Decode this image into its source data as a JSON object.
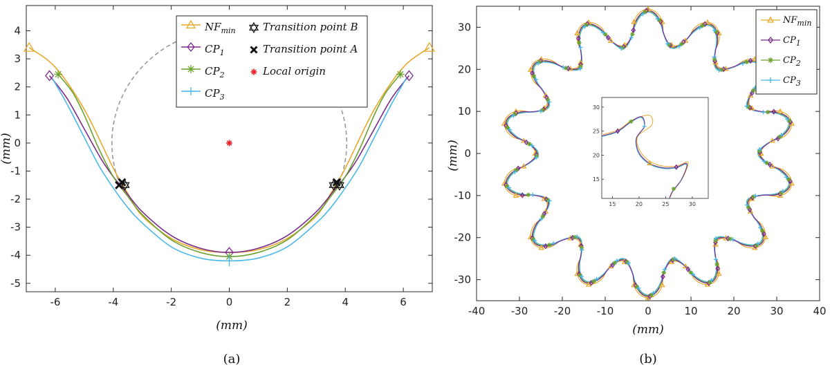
{
  "colors": {
    "nf": "#e7a92b",
    "cp1": "#7b2a8a",
    "cp2": "#6ba12e",
    "cp3": "#49b7e8",
    "origin": "#e8212b",
    "dash": "#999999"
  },
  "chart_data": [
    {
      "type": "line",
      "caption": "(a)",
      "xlabel": "(mm)",
      "ylabel": "(mm)",
      "xlim": [
        -7,
        7
      ],
      "ylim": [
        -5.3,
        4.9
      ],
      "xticks": [
        "-6",
        "-4",
        "-2",
        "0",
        "2",
        "4",
        "6"
      ],
      "yticks": [
        "4",
        "3",
        "2",
        "1",
        "0",
        "-1",
        "-2",
        "-3",
        "-4",
        "-5"
      ],
      "xtick_values": [
        -6,
        -4,
        -2,
        0,
        2,
        4,
        6
      ],
      "ytick_values": [
        4,
        3,
        2,
        1,
        0,
        -1,
        -2,
        -3,
        -4,
        -5
      ],
      "legend": {
        "placement": "top-right",
        "entries": [
          {
            "name": "NF",
            "sub": "min",
            "marker": "triangle"
          },
          {
            "name": "CP",
            "sub": "1",
            "marker": "diamond"
          },
          {
            "name": "CP",
            "sub": "2",
            "marker": "asterisk"
          },
          {
            "name": "CP",
            "sub": "3",
            "marker": "plus"
          },
          {
            "name": "Transition point B",
            "sub": "",
            "marker": "hexagram"
          },
          {
            "name": "Transition point A",
            "sub": "",
            "marker": "cross"
          },
          {
            "name": "Local origin",
            "sub": "",
            "marker": "star"
          }
        ]
      },
      "series": [
        {
          "name": "NF_min",
          "x": [
            -6.9,
            -6,
            -5,
            -4,
            -3.5,
            -3,
            -2,
            -1,
            0,
            1,
            2,
            3,
            3.5,
            4,
            5,
            6,
            6.9
          ],
          "y": [
            3.4,
            2.7,
            1.2,
            -0.9,
            -1.8,
            -2.6,
            -3.4,
            -3.8,
            -3.9,
            -3.8,
            -3.4,
            -2.6,
            -1.8,
            -0.9,
            1.2,
            2.7,
            3.4
          ]
        },
        {
          "name": "CP_1",
          "x": [
            -6.2,
            -5.6,
            -5,
            -4.4,
            -4,
            -3.6,
            -3,
            -2,
            -1,
            0,
            1,
            2,
            3,
            3.6,
            4,
            4.4,
            5,
            5.6,
            6.2
          ],
          "y": [
            2.4,
            1.6,
            0.5,
            -0.6,
            -1.2,
            -1.7,
            -2.45,
            -3.3,
            -3.75,
            -3.9,
            -3.75,
            -3.3,
            -2.45,
            -1.7,
            -1.2,
            -0.6,
            0.5,
            1.6,
            2.4
          ]
        },
        {
          "name": "CP_2",
          "x": [
            -5.9,
            -5.4,
            -5,
            -4.5,
            -4,
            -3.5,
            -3,
            -2,
            -1,
            0,
            1,
            2,
            3,
            3.5,
            4,
            4.5,
            5,
            5.4,
            5.9
          ],
          "y": [
            2.45,
            1.8,
            1.0,
            -0.2,
            -1.2,
            -1.9,
            -2.55,
            -3.45,
            -3.9,
            -4.05,
            -3.9,
            -3.45,
            -2.55,
            -1.9,
            -1.2,
            -0.2,
            1.0,
            1.8,
            2.45
          ]
        },
        {
          "name": "CP_3",
          "x": [
            -6.1,
            -5.6,
            -5,
            -4.5,
            -4,
            -3.5,
            -3,
            -2,
            -1,
            0,
            1,
            2,
            3,
            3.5,
            4,
            4.5,
            5,
            5.6,
            6.1
          ],
          "y": [
            2.3,
            1.4,
            0.2,
            -0.8,
            -1.6,
            -2.3,
            -2.85,
            -3.7,
            -4.1,
            -4.2,
            -4.1,
            -3.7,
            -2.85,
            -2.3,
            -1.6,
            -0.8,
            0.2,
            1.4,
            2.3
          ]
        }
      ],
      "markers": {
        "NF_min": {
          "x": [
            -6.9,
            6.9
          ],
          "y": [
            3.4,
            3.4
          ]
        },
        "CP_1": {
          "x": [
            -6.2,
            0,
            6.2
          ],
          "y": [
            2.4,
            -3.9,
            2.4
          ]
        },
        "CP_2": {
          "x": [
            -5.9,
            0,
            5.9
          ],
          "y": [
            2.45,
            -4.05,
            2.45
          ]
        },
        "CP_3": {
          "x": [
            0
          ],
          "y": [
            -4.2
          ]
        },
        "transition_B": {
          "x": [
            -3.6,
            3.6,
            3.8
          ],
          "y": [
            -1.5,
            -1.5,
            -1.5
          ]
        },
        "transition_A": {
          "x": [
            -3.8,
            -3.7,
            3.7
          ],
          "y": [
            -1.5,
            -1.4,
            -1.4
          ]
        },
        "local_origin": {
          "x": [
            0
          ],
          "y": [
            0
          ]
        }
      }
    },
    {
      "type": "line",
      "caption": "(b)",
      "xlabel": "(mm)",
      "ylabel": "(mm)",
      "xlim": [
        -40,
        40
      ],
      "ylim": [
        -35,
        35
      ],
      "xticks": [
        "-40",
        "-30",
        "-20",
        "-10",
        "0",
        "10",
        "20",
        "30",
        "40"
      ],
      "yticks": [
        "30",
        "20",
        "10",
        "0",
        "-10",
        "-20",
        "-30"
      ],
      "xtick_values": [
        -40,
        -30,
        -20,
        -10,
        0,
        10,
        20,
        30,
        40
      ],
      "ytick_values": [
        30,
        20,
        10,
        0,
        -10,
        -20,
        -30
      ],
      "legend": {
        "placement": "top-right",
        "entries": [
          {
            "name": "NF",
            "sub": "min",
            "marker": "triangle"
          },
          {
            "name": "CP",
            "sub": "1",
            "marker": "diamond"
          },
          {
            "name": "CP",
            "sub": "2",
            "marker": "asterisk"
          },
          {
            "name": "CP",
            "sub": "3",
            "marker": "plus"
          }
        ]
      },
      "gear": {
        "teeth": 14,
        "outer_radius": 34,
        "root_radius": 26
      },
      "inset": {
        "xticks": [
          "15",
          "20",
          "25",
          "30"
        ],
        "yticks": [
          "30",
          "25",
          "20",
          "15"
        ],
        "xtick_values": [
          15,
          20,
          25,
          30
        ],
        "ytick_values": [
          30,
          25,
          20,
          15
        ],
        "xlim": [
          13,
          33
        ],
        "ylim": [
          11,
          32
        ]
      }
    }
  ]
}
